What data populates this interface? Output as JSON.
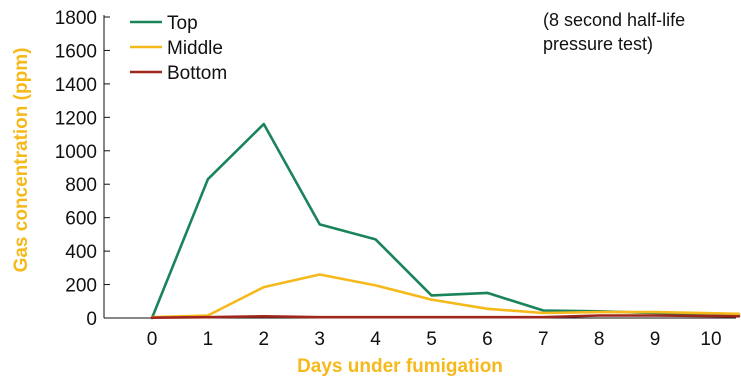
{
  "chart_data": {
    "type": "line",
    "title": "",
    "xlabel": "Days under fumigation",
    "ylabel": "Gas concentration (ppm)",
    "xlim": [
      0,
      10.5
    ],
    "ylim": [
      0,
      1800
    ],
    "x_ticks": [
      "0",
      "1",
      "2",
      "3",
      "4",
      "5",
      "6",
      "7",
      "8",
      "9",
      "10"
    ],
    "y_ticks": [
      "0",
      "200",
      "400",
      "600",
      "800",
      "1000",
      "1200",
      "1400",
      "1600",
      "1800"
    ],
    "annotation": [
      "(8 second half-life",
      "pressure test)"
    ],
    "legend_position": "top-left",
    "grid": false,
    "axis_title_color": "#f6b91b",
    "series": [
      {
        "name": "Top",
        "color": "#19845a",
        "x": [
          0,
          1,
          2,
          3,
          4,
          5,
          6,
          7,
          8,
          9,
          10.5
        ],
        "y": [
          0,
          830,
          1160,
          560,
          470,
          135,
          150,
          45,
          40,
          30,
          20
        ]
      },
      {
        "name": "Middle",
        "color": "#f6b91b",
        "x": [
          0,
          1,
          2,
          3,
          4,
          5,
          6,
          7,
          8,
          9,
          10.5
        ],
        "y": [
          5,
          15,
          185,
          260,
          195,
          110,
          55,
          30,
          35,
          35,
          25
        ]
      },
      {
        "name": "Bottom",
        "color": "#a0261c",
        "x": [
          0,
          1,
          2,
          3,
          4,
          5,
          6,
          7,
          8,
          9,
          10.5
        ],
        "y": [
          2,
          5,
          10,
          5,
          5,
          5,
          5,
          5,
          15,
          15,
          10
        ]
      }
    ]
  }
}
